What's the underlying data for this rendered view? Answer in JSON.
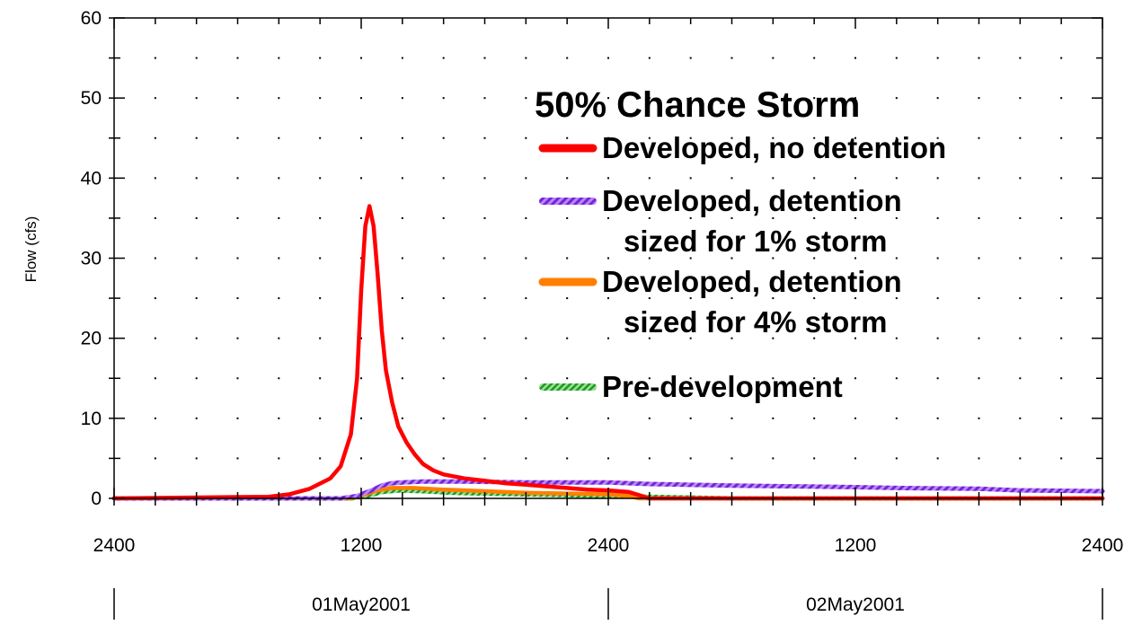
{
  "chart_data": {
    "type": "line",
    "title": "50% Chance Storm",
    "xlabel": "",
    "ylabel": "Flow (cfs)",
    "ylim": [
      0,
      60
    ],
    "xlim": [
      0,
      48
    ],
    "x_unit": "hours from 01May2001 0000",
    "yticks": [
      0,
      10,
      20,
      30,
      40,
      50,
      60
    ],
    "xticks": [
      {
        "x": 0,
        "label": "2400"
      },
      {
        "x": 12,
        "label": "1200"
      },
      {
        "x": 24,
        "label": "2400"
      },
      {
        "x": 36,
        "label": "1200"
      },
      {
        "x": 48,
        "label": "2400"
      }
    ],
    "date_bands": [
      {
        "start": 0,
        "end": 24,
        "label": "01May2001"
      },
      {
        "start": 24,
        "end": 48,
        "label": "02May2001"
      }
    ],
    "grid": "dotted",
    "legend_position": "top-right",
    "series": [
      {
        "name": "Developed, no detention",
        "color": "#ff0000",
        "style": "solid",
        "x": [
          0,
          7.5,
          8.5,
          9.5,
          10.5,
          11.0,
          11.5,
          11.8,
          12.0,
          12.2,
          12.4,
          12.6,
          12.8,
          13.0,
          13.2,
          13.5,
          13.8,
          14.2,
          14.6,
          15.0,
          15.5,
          16.0,
          17.0,
          18.0,
          19.0,
          20.0,
          21.0,
          22.0,
          23.0,
          24.0,
          25.0,
          25.5,
          26.0,
          48.0
        ],
        "y": [
          0,
          0.2,
          0.5,
          1.2,
          2.5,
          4,
          8,
          15,
          26,
          34,
          36.5,
          34,
          28,
          21,
          16,
          12,
          9,
          7,
          5.5,
          4.3,
          3.5,
          3.0,
          2.5,
          2.2,
          1.9,
          1.7,
          1.5,
          1.3,
          1.1,
          1.0,
          0.8,
          0.4,
          0,
          0
        ]
      },
      {
        "name": "Developed, detention sized for 1% storm",
        "color": "#8a2be2",
        "style": "hatched",
        "x": [
          0,
          11.0,
          11.8,
          12.5,
          13.0,
          13.5,
          14.0,
          15.0,
          17.0,
          20.0,
          24.0,
          25.0,
          26.0,
          30.0,
          33.0,
          36.0,
          38.0,
          42.0,
          44.0,
          48.0
        ],
        "y": [
          0,
          0,
          0.3,
          1.0,
          1.6,
          1.9,
          2.0,
          2.1,
          2.1,
          2.0,
          2.0,
          1.9,
          1.8,
          1.6,
          1.5,
          1.4,
          1.3,
          1.2,
          1.0,
          0.9
        ]
      },
      {
        "name": "Developed, detention sized for 4% storm",
        "color": "#ff8000",
        "style": "solid",
        "x": [
          0,
          11.5,
          12.2,
          12.8,
          13.5,
          14.5,
          16.0,
          18.0,
          20.0,
          22.0,
          24.0,
          25.0,
          25.5,
          48.0
        ],
        "y": [
          0,
          0,
          0.5,
          1.0,
          1.3,
          1.3,
          1.1,
          0.9,
          0.7,
          0.6,
          0.5,
          0.3,
          0,
          0
        ]
      },
      {
        "name": "Pre-development",
        "color": "#2db82d",
        "style": "hatched",
        "x": [
          0,
          11.5,
          12.3,
          13.0,
          13.8,
          15.0,
          16.5,
          18.0,
          20.0,
          22.0,
          24.0,
          26.0,
          28.0,
          30.0,
          48.0
        ],
        "y": [
          0,
          0,
          0.3,
          0.8,
          1.0,
          0.9,
          0.7,
          0.6,
          0.5,
          0.4,
          0.3,
          0.2,
          0.1,
          0,
          0
        ]
      }
    ],
    "legend": {
      "title": "50% Chance Storm",
      "entries": [
        {
          "series": 0,
          "lines": [
            "Developed, no detention"
          ]
        },
        {
          "series": 1,
          "lines": [
            "Developed, detention",
            "sized for 1% storm"
          ]
        },
        {
          "series": 2,
          "lines": [
            "Developed, detention",
            "sized for 4% storm"
          ]
        },
        {
          "series": 3,
          "lines": [
            "Pre-development"
          ]
        }
      ]
    }
  }
}
